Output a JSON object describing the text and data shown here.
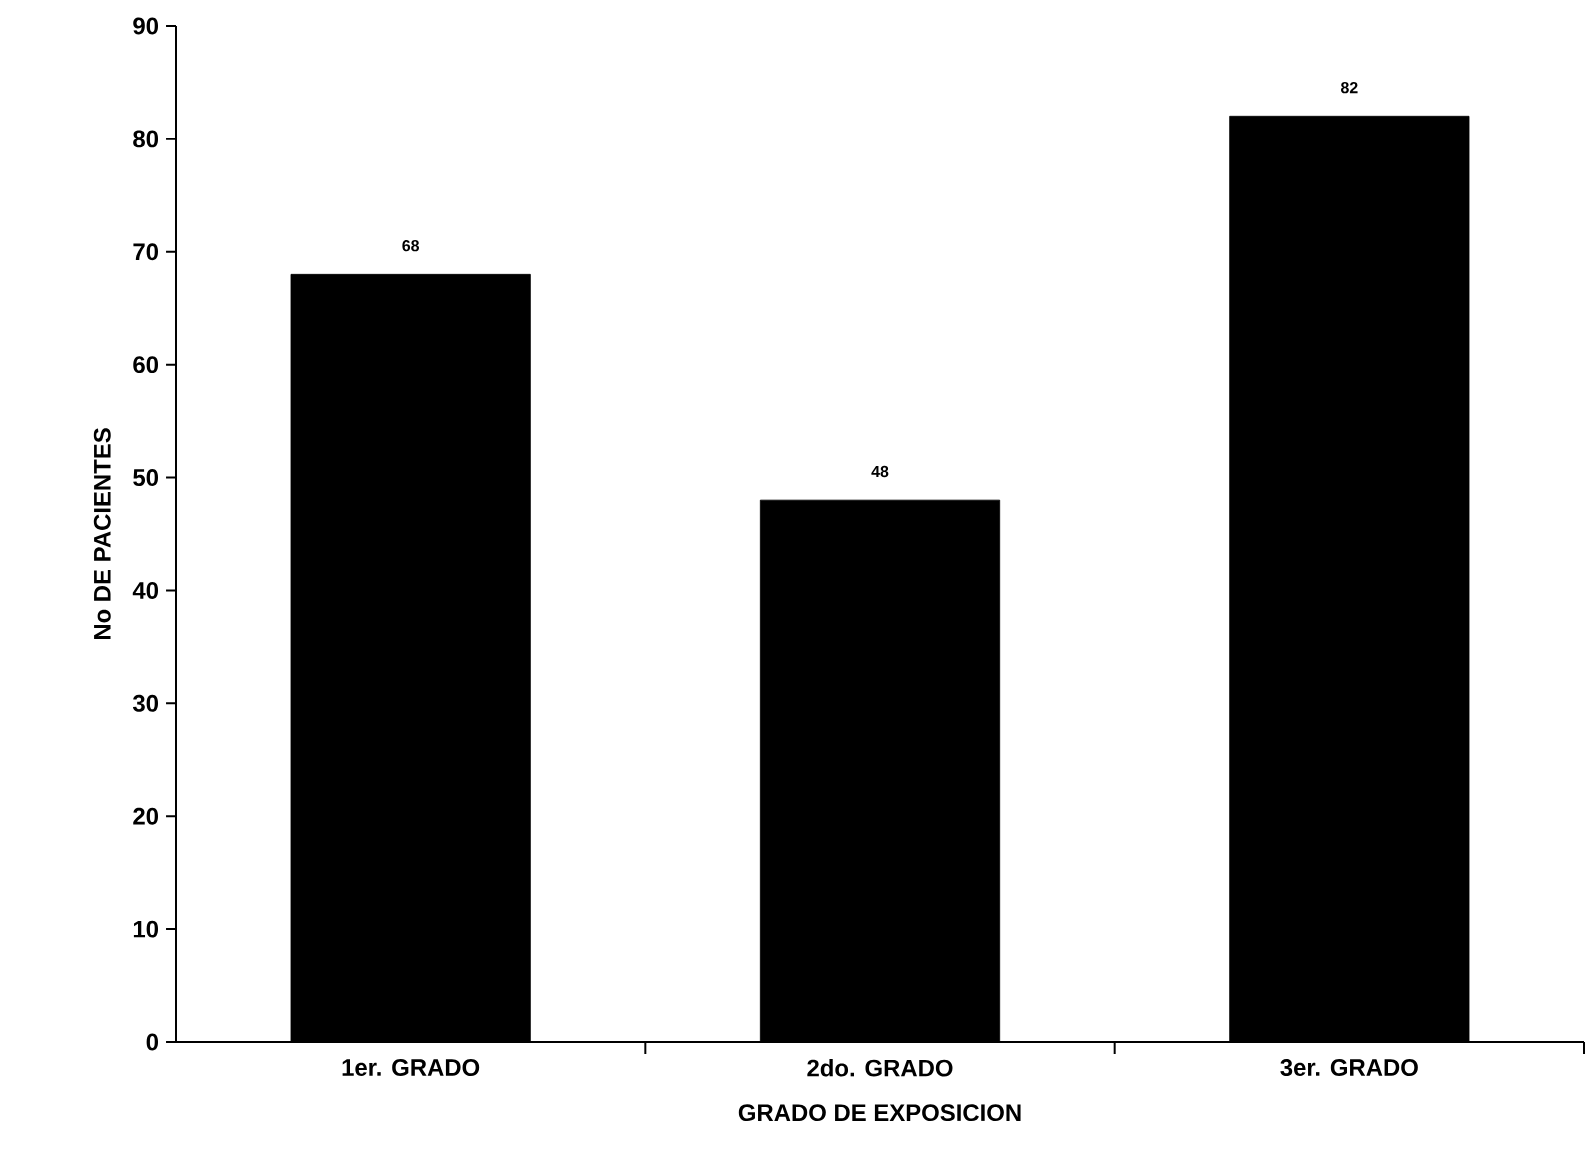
{
  "chart_data": {
    "type": "bar",
    "xlabel": "GRADO DE EXPOSICION",
    "ylabel": "No DE PACIENTES",
    "categories": [
      "1er. GRADO",
      "2do. GRADO",
      "3er. GRADO"
    ],
    "values": [
      68,
      48,
      82
    ],
    "color": "#000000",
    "data_labels": true,
    "ylim": [
      0,
      90
    ],
    "yticks": [
      0,
      10,
      20,
      30,
      40,
      50,
      60,
      70,
      80,
      90
    ],
    "grid": false
  }
}
